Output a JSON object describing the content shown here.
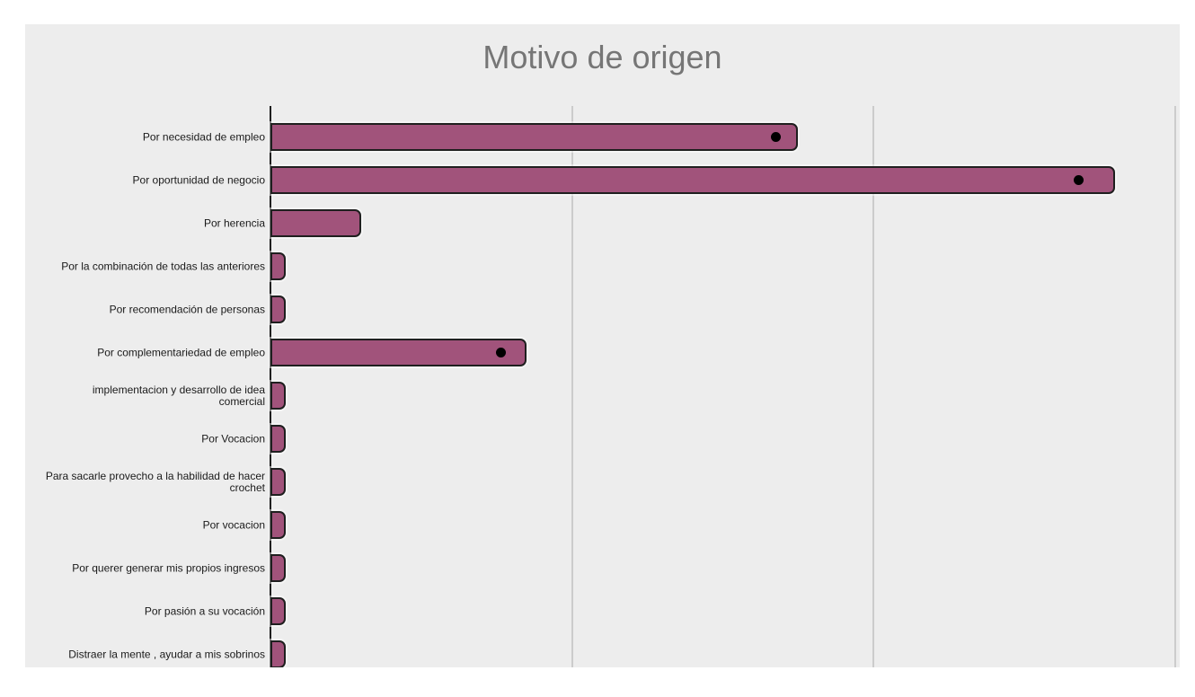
{
  "chart_data": {
    "type": "bar",
    "orientation": "horizontal",
    "title": "Motivo de origen",
    "categories": [
      "Por necesidad de empleo",
      "Por oportunidad de negocio",
      "Por herencia",
      "Por la combinación de todas las anteriores",
      "Por recomendación de personas",
      "Por complementariedad de empleo",
      "implementacion y desarrollo de idea comercial",
      "Por Vocacion",
      "Para sacarle provecho a la habilidad de hacer crochet",
      "Por vocacion",
      "Por querer generar mis propios ingresos",
      "Por pasión a su vocación",
      "Distraer la mente , ayudar a mis sobrinos"
    ],
    "values": [
      35,
      56,
      6,
      1,
      1,
      17,
      1,
      1,
      1,
      1,
      1,
      1,
      1
    ],
    "markers": [
      {
        "category_index": 0,
        "value": 33.5
      },
      {
        "category_index": 1,
        "value": 53.6
      },
      {
        "category_index": 5,
        "value": 15.3
      }
    ],
    "xlim": [
      0,
      60
    ],
    "gridlines_x": [
      20,
      40,
      60
    ],
    "x_tick_labels_visible": false,
    "grid": "vertical-only",
    "legend": "none",
    "colors": {
      "bar_fill": "#a1537b",
      "bar_border": "#1f1f1f",
      "chart_background": "#ededed",
      "page_background": "#ffffff",
      "gridline": "#cccccc",
      "title": "#767676",
      "label": "#1a1a1a",
      "marker": "#000000"
    }
  }
}
